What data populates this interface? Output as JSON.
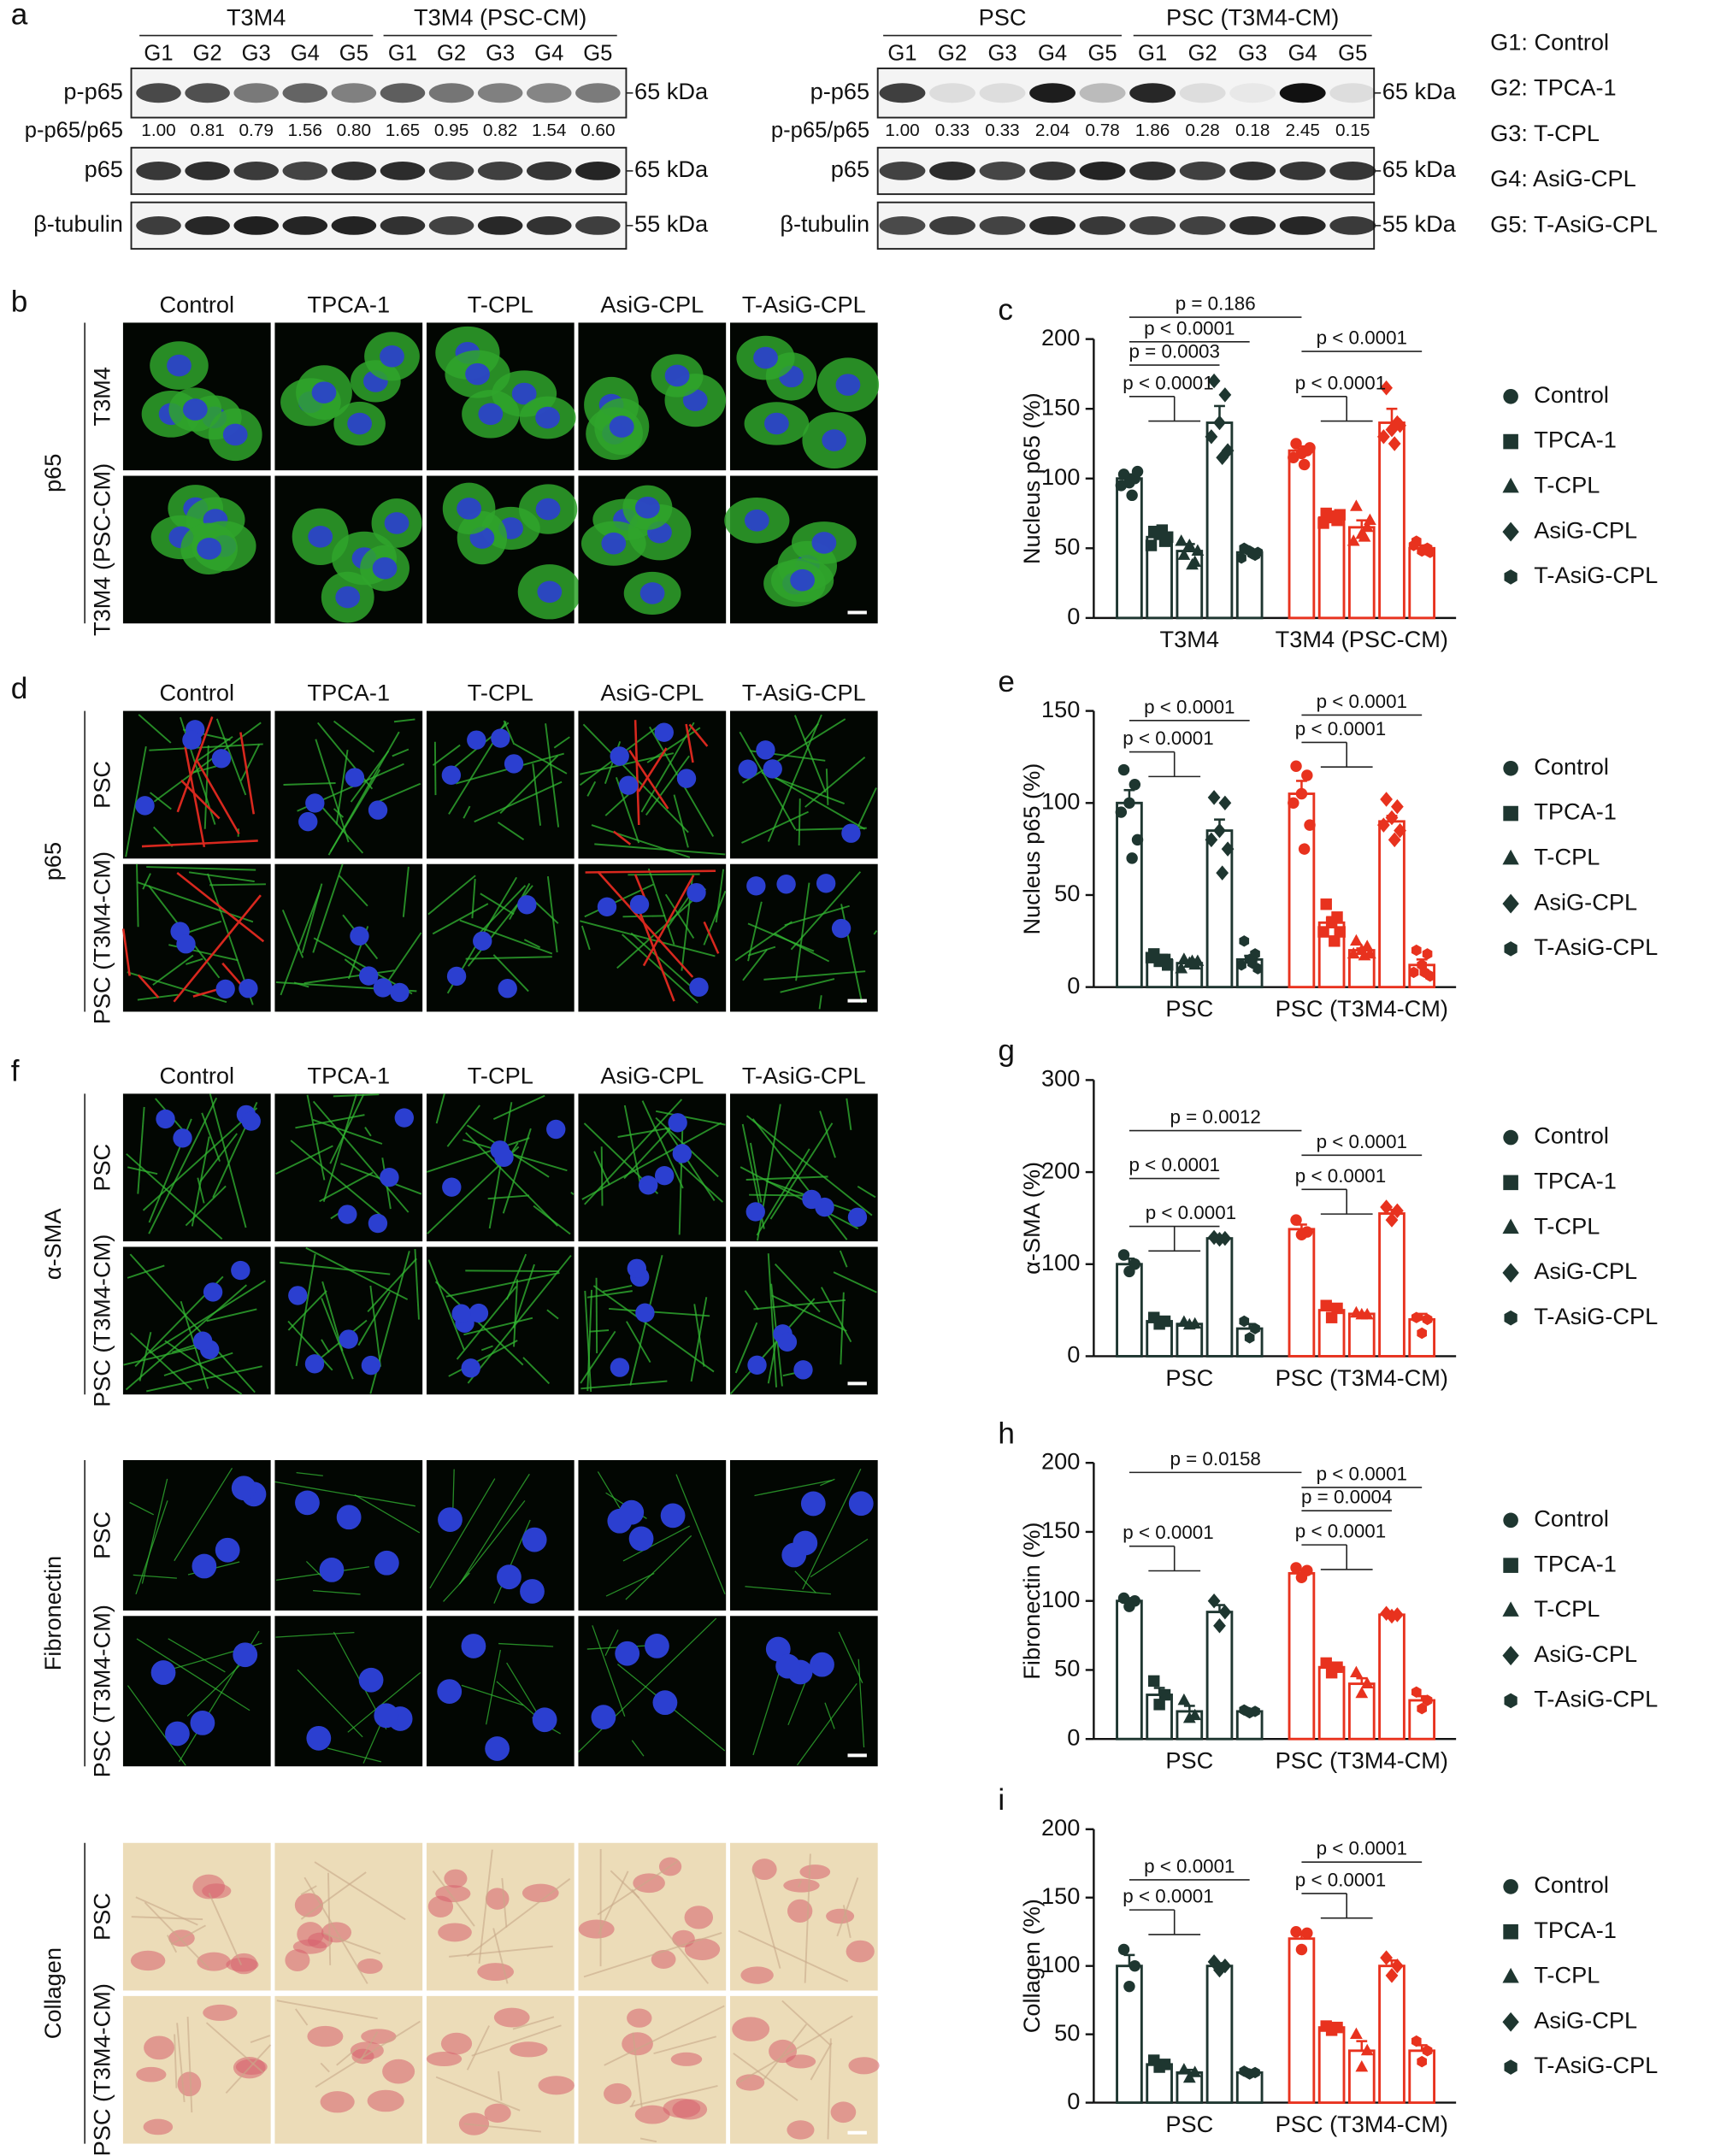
{
  "figure": {
    "a": {
      "label": "a",
      "left": {
        "groups": [
          "T3M4",
          "T3M4 (PSC-CM)"
        ],
        "lanes": [
          "G1",
          "G2",
          "G3",
          "G4",
          "G5",
          "G1",
          "G2",
          "G3",
          "G4",
          "G5"
        ],
        "rows": [
          "p-p65",
          "p-p65/p65",
          "p65",
          "β-tubulin"
        ],
        "ratios": [
          "1.00",
          "0.81",
          "0.79",
          "1.56",
          "0.80",
          "1.65",
          "0.95",
          "0.82",
          "1.54",
          "0.60"
        ],
        "markers": [
          "65 kDa",
          "65 kDa",
          "55 kDa"
        ]
      },
      "right": {
        "groups": [
          "PSC",
          "PSC (T3M4-CM)"
        ],
        "lanes": [
          "G1",
          "G2",
          "G3",
          "G4",
          "G5",
          "G1",
          "G2",
          "G3",
          "G4",
          "G5"
        ],
        "rows": [
          "p-p65",
          "p-p65/p65",
          "p65",
          "β-tubulin"
        ],
        "ratios": [
          "1.00",
          "0.33",
          "0.33",
          "2.04",
          "0.78",
          "1.86",
          "0.28",
          "0.18",
          "2.45",
          "0.15"
        ],
        "markers": [
          "65 kDa",
          "65 kDa",
          "55 kDa"
        ]
      },
      "key": [
        "G1: Control",
        "G2: TPCA-1",
        "G3: T-CPL",
        "G4: AsiG-CPL",
        "G5: T-AsiG-CPL"
      ]
    },
    "b": {
      "label": "b",
      "columns": [
        "Control",
        "TPCA-1",
        "T-CPL",
        "AsiG-CPL",
        "T-AsiG-CPL"
      ],
      "rows": [
        "T3M4",
        "T3M4 (PSC-CM)"
      ],
      "stain": "p65"
    },
    "d": {
      "label": "d",
      "columns": [
        "Control",
        "TPCA-1",
        "T-CPL",
        "AsiG-CPL",
        "T-AsiG-CPL"
      ],
      "rows": [
        "PSC",
        "PSC (T3M4-CM)"
      ],
      "stain": "p65"
    },
    "f": {
      "label": "f",
      "columns": [
        "Control",
        "TPCA-1",
        "T-CPL",
        "AsiG-CPL",
        "T-AsiG-CPL"
      ],
      "sections": [
        {
          "stain": "α-SMA",
          "rows": [
            "PSC",
            "PSC (T3M4-CM)"
          ]
        },
        {
          "stain": "Fibronectin",
          "rows": [
            "PSC",
            "PSC (T3M4-CM)"
          ]
        },
        {
          "stain": "Collagen",
          "rows": [
            "PSC",
            "PSC (T3M4-CM)"
          ]
        }
      ]
    }
  },
  "chart_data": [
    {
      "type": "bar",
      "panel": "c",
      "ylabel": "Nucleus p65 (%)",
      "ylim": [
        0,
        200
      ],
      "yticks": [
        0,
        50,
        100,
        150,
        200
      ],
      "groups": [
        {
          "name": "T3M4",
          "color": "#1e3630"
        },
        {
          "name": "T3M4 (PSC-CM)",
          "color": "#e8321e"
        }
      ],
      "series": [
        {
          "name": "Control",
          "marker": "circle",
          "values": [
            100,
            120
          ],
          "errors": [
            3,
            3
          ],
          "points": [
            [
              103,
              100,
              97,
              95,
              105,
              88
            ],
            [
              125,
              120,
              118,
              115,
              122,
              110
            ]
          ]
        },
        {
          "name": "TPCA-1",
          "marker": "square",
          "values": [
            58,
            72
          ],
          "errors": [
            3,
            2
          ],
          "points": [
            [
              62,
              55,
              60,
              52,
              58,
              63
            ],
            [
              75,
              70,
              72,
              68,
              74,
              73
            ]
          ]
        },
        {
          "name": "T-CPL",
          "marker": "triangle",
          "values": [
            48,
            65
          ],
          "errors": [
            5,
            5
          ],
          "points": [
            [
              45,
              40,
              52,
              55,
              48,
              38
            ],
            [
              80,
              65,
              60,
              55,
              70,
              58
            ]
          ]
        },
        {
          "name": "AsiG-CPL",
          "marker": "diamond",
          "values": [
            140,
            140
          ],
          "errors": [
            12,
            10
          ],
          "points": [
            [
              170,
              160,
              140,
              130,
              120,
              115
            ],
            [
              165,
              140,
              135,
              130,
              138,
              125
            ]
          ]
        },
        {
          "name": "T-AsiG-CPL",
          "marker": "hexagon",
          "values": [
            47,
            50
          ],
          "errors": [
            2,
            2
          ],
          "points": [
            [
              50,
              45,
              48,
              43,
              47,
              46
            ],
            [
              55,
              50,
              48,
              52,
              47,
              49
            ]
          ]
        }
      ],
      "annotations": [
        "p = 0.186",
        "p < 0.0001",
        "p = 0.0003",
        "p < 0.0001",
        "p < 0.0001",
        "p < 0.0001"
      ]
    },
    {
      "type": "bar",
      "panel": "e",
      "ylabel": "Nucleus p65 (%)",
      "ylim": [
        0,
        150
      ],
      "yticks": [
        0,
        50,
        100,
        150
      ],
      "groups": [
        {
          "name": "PSC",
          "color": "#1e3630"
        },
        {
          "name": "PSC (T3M4-CM)",
          "color": "#e8321e"
        }
      ],
      "series": [
        {
          "name": "Control",
          "marker": "circle",
          "values": [
            100,
            105
          ],
          "errors": [
            7,
            7
          ],
          "points": [
            [
              118,
              110,
              100,
              95,
              80,
              70
            ],
            [
              120,
              115,
              105,
              100,
              88,
              75
            ]
          ]
        },
        {
          "name": "TPCA-1",
          "marker": "square",
          "values": [
            15,
            35
          ],
          "errors": [
            1,
            3
          ],
          "points": [
            [
              18,
              15,
              14,
              16,
              12,
              15
            ],
            [
              45,
              38,
              35,
              30,
              30,
              25
            ]
          ]
        },
        {
          "name": "T-CPL",
          "marker": "triangle",
          "values": [
            13,
            20
          ],
          "errors": [
            1,
            1
          ],
          "points": [
            [
              15,
              12,
              13,
              10,
              14,
              14
            ],
            [
              25,
              22,
              20,
              18,
              18,
              17
            ]
          ]
        },
        {
          "name": "AsiG-CPL",
          "marker": "diamond",
          "values": [
            85,
            90
          ],
          "errors": [
            6,
            3
          ],
          "points": [
            [
              103,
              100,
              85,
              80,
              75,
              62
            ],
            [
              102,
              98,
              92,
              88,
              85,
              80
            ]
          ]
        },
        {
          "name": "T-AsiG-CPL",
          "marker": "hexagon",
          "values": [
            15,
            12
          ],
          "errors": [
            2,
            3
          ],
          "points": [
            [
              25,
              18,
              15,
              12,
              10,
              13
            ],
            [
              20,
              18,
              12,
              8,
              6,
              8
            ]
          ]
        }
      ],
      "annotations": [
        "p < 0.0001",
        "p < 0.0001",
        "p < 0.0001",
        "p < 0.0001"
      ]
    },
    {
      "type": "bar",
      "panel": "g",
      "ylabel": "α-SMA (%)",
      "ylim": [
        0,
        300
      ],
      "yticks": [
        0,
        100,
        200,
        300
      ],
      "groups": [
        {
          "name": "PSC",
          "color": "#1e3630"
        },
        {
          "name": "PSC (T3M4-CM)",
          "color": "#e8321e"
        }
      ],
      "series": [
        {
          "name": "Control",
          "marker": "circle",
          "values": [
            100,
            138
          ],
          "errors": [
            6,
            5
          ],
          "points": [
            [
              110,
              100,
              92
            ],
            [
              148,
              135,
              132
            ]
          ]
        },
        {
          "name": "TPCA-1",
          "marker": "square",
          "values": [
            38,
            50
          ],
          "errors": [
            2,
            4
          ],
          "points": [
            [
              42,
              38,
              35
            ],
            [
              55,
              52,
              42
            ]
          ]
        },
        {
          "name": "T-CPL",
          "marker": "triangle",
          "values": [
            35,
            46
          ],
          "errors": [
            1,
            1
          ],
          "points": [
            [
              37,
              35,
              34
            ],
            [
              47,
              45,
              45
            ]
          ]
        },
        {
          "name": "AsiG-CPL",
          "marker": "diamond",
          "values": [
            128,
            155
          ],
          "errors": [
            1,
            4
          ],
          "points": [
            [
              129,
              128,
              127
            ],
            [
              162,
              158,
              148
            ]
          ]
        },
        {
          "name": "T-AsiG-CPL",
          "marker": "hexagon",
          "values": [
            30,
            40
          ],
          "errors": [
            5,
            6
          ],
          "points": [
            [
              38,
              30,
              20
            ],
            [
              42,
              40,
              25
            ]
          ]
        }
      ],
      "annotations": [
        "p = 0.0012",
        "p < 0.0001",
        "p < 0.0001",
        "p < 0.0001",
        "p < 0.0001"
      ]
    },
    {
      "type": "bar",
      "panel": "h",
      "ylabel": "Fibronectin (%)",
      "ylim": [
        0,
        200
      ],
      "yticks": [
        0,
        50,
        100,
        150,
        200
      ],
      "groups": [
        {
          "name": "PSC",
          "color": "#1e3630"
        },
        {
          "name": "PSC (T3M4-CM)",
          "color": "#e8321e"
        }
      ],
      "series": [
        {
          "name": "Control",
          "marker": "circle",
          "values": [
            100,
            120
          ],
          "errors": [
            2,
            2
          ],
          "points": [
            [
              102,
              100,
              96
            ],
            [
              124,
              122,
              117
            ]
          ]
        },
        {
          "name": "TPCA-1",
          "marker": "square",
          "values": [
            32,
            52
          ],
          "errors": [
            5,
            2
          ],
          "points": [
            [
              42,
              32,
              25
            ],
            [
              55,
              52,
              48
            ]
          ]
        },
        {
          "name": "T-CPL",
          "marker": "triangle",
          "values": [
            20,
            40
          ],
          "errors": [
            4,
            4
          ],
          "points": [
            [
              28,
              17,
              15
            ],
            [
              48,
              40,
              33
            ]
          ]
        },
        {
          "name": "AsiG-CPL",
          "marker": "diamond",
          "values": [
            92,
            90
          ],
          "errors": [
            5,
            1
          ],
          "points": [
            [
              100,
              92,
              82
            ],
            [
              91,
              90,
              89
            ]
          ]
        },
        {
          "name": "T-AsiG-CPL",
          "marker": "hexagon",
          "values": [
            20,
            28
          ],
          "errors": [
            1,
            3
          ],
          "points": [
            [
              21,
              20,
              19
            ],
            [
              34,
              28,
              22
            ]
          ]
        }
      ],
      "annotations": [
        "p = 0.0158",
        "p < 0.0001",
        "p < 0.0001",
        "p = 0.0004",
        "p < 0.0001"
      ]
    },
    {
      "type": "bar",
      "panel": "i",
      "ylabel": "Collagen (%)",
      "ylim": [
        0,
        200
      ],
      "yticks": [
        0,
        50,
        100,
        150,
        200
      ],
      "groups": [
        {
          "name": "PSC",
          "color": "#1e3630"
        },
        {
          "name": "PSC (T3M4-CM)",
          "color": "#e8321e"
        }
      ],
      "series": [
        {
          "name": "Control",
          "marker": "circle",
          "values": [
            100,
            120
          ],
          "errors": [
            8,
            4
          ],
          "points": [
            [
              112,
              100,
              85
            ],
            [
              125,
              124,
              112
            ]
          ]
        },
        {
          "name": "TPCA-1",
          "marker": "square",
          "values": [
            28,
            55
          ],
          "errors": [
            1,
            1
          ],
          "points": [
            [
              31,
              28,
              26
            ],
            [
              56,
              55,
              53
            ]
          ]
        },
        {
          "name": "T-CPL",
          "marker": "triangle",
          "values": [
            22,
            38
          ],
          "errors": [
            2,
            7
          ],
          "points": [
            [
              24,
              22,
              18
            ],
            [
              50,
              38,
              26
            ]
          ]
        },
        {
          "name": "AsiG-CPL",
          "marker": "diamond",
          "values": [
            100,
            100
          ],
          "errors": [
            2,
            4
          ],
          "points": [
            [
              103,
              100,
              97
            ],
            [
              106,
              100,
              93
            ]
          ]
        },
        {
          "name": "T-AsiG-CPL",
          "marker": "hexagon",
          "values": [
            22,
            38
          ],
          "errors": [
            1,
            4
          ],
          "points": [
            [
              23,
              22,
              21
            ],
            [
              45,
              38,
              30
            ]
          ]
        }
      ],
      "annotations": [
        "p < 0.0001",
        "p < 0.0001",
        "p < 0.0001",
        "p < 0.0001"
      ]
    }
  ]
}
